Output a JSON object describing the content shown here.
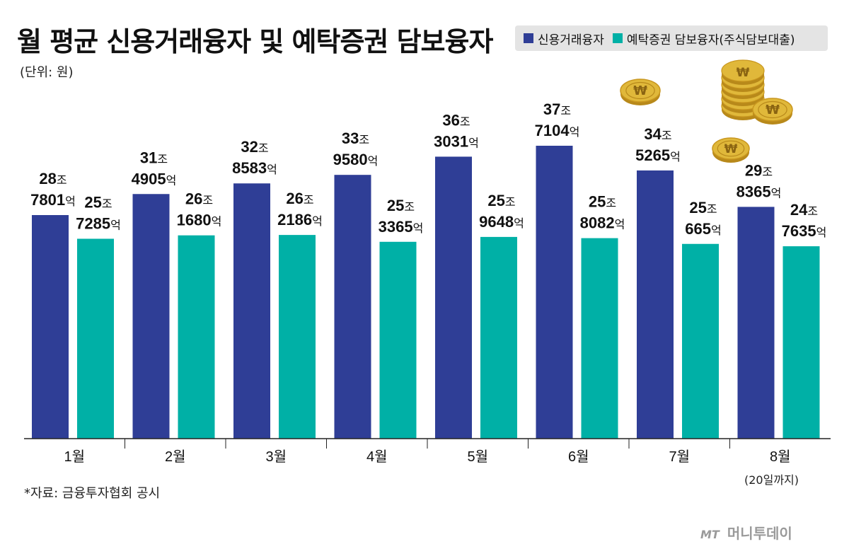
{
  "title": "월 평균 신용거래융자 및 예탁증권 담보융자",
  "unit": "(단위: 원)",
  "legend": {
    "credit": "신용거래융자",
    "collateral": "예탁증권 담보융자(주식담보대출)"
  },
  "source": "*자료: 금융투자협회 공시",
  "note": "(20일까지)",
  "brand": {
    "mt": "MT",
    "name": "머니투데이"
  },
  "colors": {
    "credit": "#2f3e96",
    "collateral": "#00b0a6",
    "coin": "#e0b83a"
  },
  "icons": [
    "won-coin-icon",
    "won-coin-stack-icon"
  ],
  "chart_data": {
    "type": "bar",
    "categories": [
      "1월",
      "2월",
      "3월",
      "4월",
      "5월",
      "6월",
      "7월",
      "8월"
    ],
    "series": [
      {
        "name": "신용거래융자",
        "values": [
          287801,
          314905,
          328583,
          339580,
          363031,
          377104,
          345265,
          298365
        ],
        "labels_jo": [
          "28",
          "31",
          "32",
          "33",
          "36",
          "37",
          "34",
          "29"
        ],
        "labels_eok": [
          "7801",
          "4905",
          "8583",
          "9580",
          "3031",
          "7104",
          "5265",
          "8365"
        ]
      },
      {
        "name": "예탁증권 담보융자(주식담보대출)",
        "values": [
          257285,
          261680,
          262186,
          253365,
          259648,
          258082,
          250665,
          247635
        ],
        "labels_jo": [
          "25",
          "26",
          "26",
          "25",
          "25",
          "25",
          "25",
          "24"
        ],
        "labels_eok": [
          "7285",
          "1680",
          "2186",
          "3365",
          "9648",
          "8082",
          "665",
          "7635"
        ]
      }
    ],
    "value_unit": "억원",
    "label_units": {
      "jo": "조",
      "eok": "억"
    }
  }
}
